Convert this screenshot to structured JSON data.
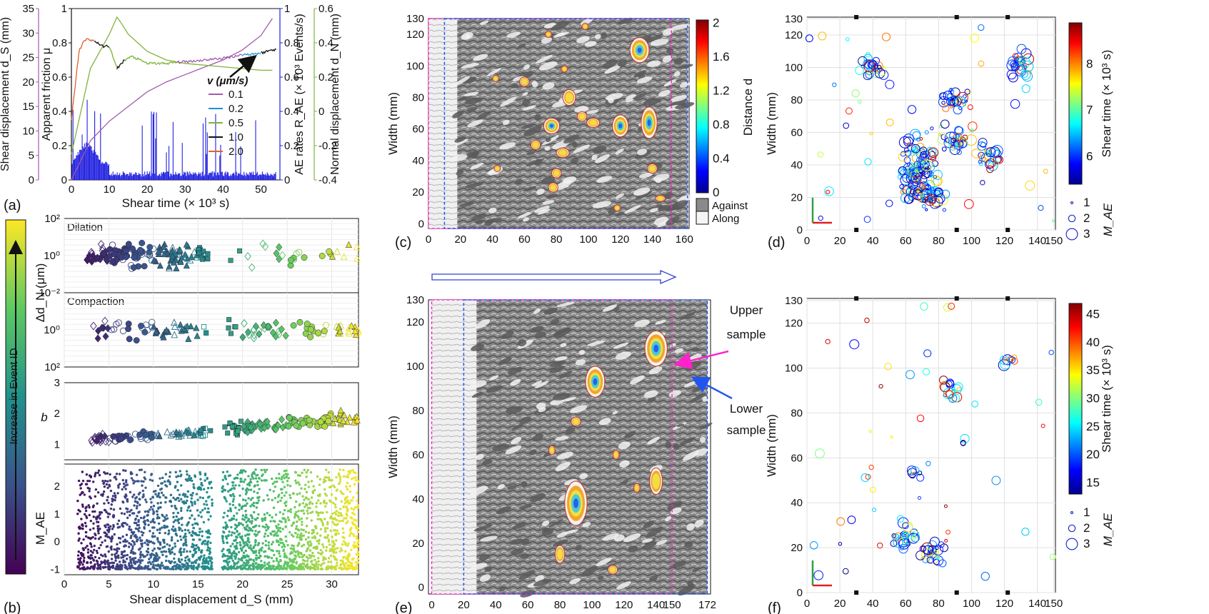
{
  "panel_letters": [
    "(a)",
    "(b)",
    "(c)",
    "(d)",
    "(e)",
    "(f)"
  ],
  "colors": {
    "ds": "#a35ab0",
    "ae": "#2020e0",
    "dn": "#7fb33a",
    "v01": "#a35ab0",
    "v02": "#1f8fd6",
    "v05": "#7fb33a",
    "v10": "#111111",
    "v20": "#e0602a",
    "upper": "#ff22cc",
    "lower": "#2255ee"
  },
  "chart_data": [
    {
      "id": "a",
      "type": "line",
      "xlabel": "Shear time (× 10³ s)",
      "xlim": [
        0,
        55
      ],
      "xticks": [
        "0",
        "10",
        "20",
        "30",
        "40",
        "50"
      ],
      "axes": [
        {
          "label": "Shear displacement d_S (mm)",
          "ylim": [
            0,
            35
          ],
          "ticks": [
            "0",
            "5",
            "10",
            "15",
            "20",
            "25",
            "30",
            "35"
          ]
        },
        {
          "label": "Apparent friction μ",
          "ylim": [
            0,
            1
          ],
          "ticks": [
            "0",
            "0.2",
            "0.4",
            "0.6",
            "0.8",
            "1"
          ]
        },
        {
          "label": "AE rates R_AE (× 10³ Events/s)",
          "ylim": [
            0,
            1
          ],
          "ticks": [
            "0",
            "0.2",
            "0.4",
            "0.6",
            "0.8",
            "1"
          ]
        },
        {
          "label": "Normal displacement d_N (mm)",
          "ylim": [
            -0.4,
            0.6
          ],
          "ticks": [
            "-0.4",
            "-0.2",
            "0",
            "0.2",
            "0.4",
            "0.6"
          ]
        }
      ],
      "legend_title": "v (μm/s)",
      "legend": [
        "0.1",
        "0.2",
        "0.5",
        "1.0",
        "2.0"
      ],
      "series": [
        {
          "name": "friction",
          "x": [
            0,
            2,
            3,
            4,
            5,
            6,
            7,
            8,
            10,
            12,
            14,
            16,
            20,
            25,
            30,
            35,
            40,
            45,
            50,
            53
          ],
          "values": [
            0.35,
            0.75,
            0.8,
            0.82,
            0.82,
            0.81,
            0.8,
            0.78,
            0.78,
            0.65,
            0.7,
            0.72,
            0.68,
            0.68,
            0.69,
            0.7,
            0.71,
            0.73,
            0.74,
            0.76
          ]
        },
        {
          "name": "d_S",
          "x": [
            0,
            5,
            10,
            15,
            20,
            25,
            30,
            35,
            40,
            45,
            50,
            53
          ],
          "values": [
            0,
            8,
            12,
            15,
            18,
            20,
            21.5,
            23,
            24.5,
            26.5,
            29.5,
            33
          ]
        },
        {
          "name": "d_N",
          "x": [
            0,
            5,
            10,
            12,
            13,
            15,
            20,
            25,
            30,
            40,
            50,
            53
          ],
          "values": [
            -0.25,
            0.25,
            0.45,
            0.55,
            0.52,
            0.45,
            0.35,
            0.3,
            0.28,
            0.26,
            0.24,
            0.24
          ]
        }
      ],
      "annotation": "v (μm/s)"
    },
    {
      "id": "b",
      "type": "scatter",
      "xlabel": "Shear displacement d_S (mm)",
      "xlim": [
        0,
        33
      ],
      "xticks": [
        "0",
        "5",
        "10",
        "15",
        "20",
        "25",
        "30"
      ],
      "colorbar_label": "Increase in Event ID",
      "subplots": [
        {
          "label": "Dilation",
          "ylabel": "Δd_N (μm)",
          "ticks": [
            "10²",
            "10⁰",
            "10⁻²"
          ]
        },
        {
          "label": "Compaction",
          "ticks": [
            "10⁰",
            "10²"
          ]
        },
        {
          "ylabel": "b",
          "ylim": [
            0.5,
            3
          ],
          "ticks": [
            "1",
            "2",
            "3"
          ]
        },
        {
          "ylabel": "M_AE",
          "ylim": [
            -1.2,
            2.8
          ],
          "ticks": [
            "-1",
            "0",
            "1",
            "2"
          ]
        }
      ]
    },
    {
      "id": "c",
      "type": "heatmap",
      "ylabel": "Width (mm)",
      "xticks": [
        "0",
        "20",
        "40",
        "60",
        "80",
        "100",
        "120",
        "140",
        "160"
      ],
      "xlim": [
        0,
        163
      ],
      "yticks": [
        "0",
        "20",
        "40",
        "60",
        "80",
        "100",
        "120",
        "130"
      ],
      "ylim": [
        -3,
        130
      ],
      "colorbar_label": "Distance d",
      "colorbar_ticks": [
        "0",
        "0.4",
        "0.8",
        "1.2",
        "1.6",
        "2"
      ],
      "legend": [
        "Against",
        "Along"
      ],
      "upper_sample_x": [
        0,
        152
      ],
      "lower_sample_x": [
        10,
        162
      ],
      "patches": [
        [
          132,
          110,
          6,
          8
        ],
        [
          138,
          64,
          5,
          10
        ],
        [
          120,
          62,
          5,
          7
        ],
        [
          77,
          62,
          5,
          5
        ],
        [
          88,
          80,
          4,
          5
        ],
        [
          96,
          68,
          3,
          3
        ],
        [
          84,
          45,
          4,
          3
        ],
        [
          80,
          32,
          3,
          3
        ],
        [
          67,
          50,
          3,
          3
        ],
        [
          60,
          90,
          3,
          3
        ],
        [
          103,
          64,
          4,
          3
        ],
        [
          140,
          35,
          3,
          3
        ],
        [
          145,
          16,
          3,
          2
        ],
        [
          78,
          23,
          3,
          3
        ],
        [
          118,
          10,
          2,
          2
        ],
        [
          75,
          120,
          2,
          2
        ],
        [
          98,
          125,
          2,
          2
        ],
        [
          85,
          98,
          2,
          2
        ],
        [
          43,
          35,
          2,
          2
        ],
        [
          42,
          92,
          2,
          2
        ]
      ]
    },
    {
      "id": "d",
      "type": "scatter",
      "xlim": [
        0,
        151
      ],
      "ylim": [
        0,
        131
      ],
      "xticks": [
        "0",
        "20",
        "40",
        "60",
        "80",
        "100",
        "120",
        "140",
        "150"
      ],
      "yticks": [
        "0",
        "20",
        "40",
        "60",
        "80",
        "100",
        "120",
        "130"
      ],
      "ylabel": "Width (mm)",
      "colorbar_label": "Shear time (× 10³ s)",
      "colorbar_range": [
        5.4,
        8.9
      ],
      "colorbar_ticks": [
        "6",
        "7",
        "8"
      ],
      "size_legend_title": "M_AE",
      "size_legend": [
        "1",
        "2",
        "3"
      ],
      "clusters": [
        [
          130,
          102,
          10,
          12
        ],
        [
          68,
          38,
          16,
          30
        ],
        [
          90,
          55,
          12,
          10
        ],
        [
          110,
          45,
          10,
          10
        ],
        [
          40,
          100,
          12,
          8
        ],
        [
          90,
          80,
          14,
          8
        ],
        [
          75,
          20,
          10,
          10
        ]
      ]
    },
    {
      "id": "e",
      "type": "heatmap",
      "ylabel": "Width (mm)",
      "xticks": [
        "0",
        "20",
        "40",
        "60",
        "80",
        "100",
        "120",
        "140",
        "150",
        "172"
      ],
      "xlim": [
        -2,
        174
      ],
      "yticks": [
        "0",
        "20",
        "40",
        "60",
        "80",
        "100",
        "120",
        "130"
      ],
      "ylim": [
        -3,
        130
      ],
      "upper_label": "Upper sample",
      "lower_label": "Lower sample",
      "upper_sample_x": [
        0,
        150
      ],
      "lower_sample_x": [
        20,
        172
      ],
      "patches": [
        [
          140,
          108,
          7,
          8
        ],
        [
          102,
          93,
          6,
          7
        ],
        [
          90,
          38,
          7,
          10
        ],
        [
          140,
          48,
          4,
          6
        ],
        [
          80,
          15,
          3,
          4
        ],
        [
          113,
          8,
          3,
          2
        ],
        [
          90,
          75,
          3,
          2
        ],
        [
          128,
          45,
          2,
          2
        ],
        [
          115,
          60,
          2,
          2
        ],
        [
          75,
          62,
          2,
          2
        ]
      ]
    },
    {
      "id": "f",
      "type": "scatter",
      "xlim": [
        0,
        151
      ],
      "ylim": [
        0,
        131
      ],
      "xticks": [
        "0",
        "20",
        "40",
        "60",
        "80",
        "100",
        "120",
        "140",
        "150"
      ],
      "yticks": [
        "0",
        "20",
        "40",
        "60",
        "80",
        "100",
        "120",
        "130"
      ],
      "ylabel": "Width (mm)",
      "colorbar_label": "Shear time (× 10³ s)",
      "colorbar_range": [
        13,
        47
      ],
      "colorbar_ticks": [
        "15",
        "20",
        "25",
        "30",
        "35",
        "40",
        "45"
      ],
      "size_legend_title": "M_AE",
      "size_legend": [
        "1",
        "2",
        "3"
      ],
      "clusters": [
        [
          88,
          90,
          8,
          8
        ],
        [
          123,
          102,
          6,
          6
        ],
        [
          65,
          53,
          7,
          4
        ],
        [
          75,
          18,
          10,
          10
        ],
        [
          95,
          67,
          3,
          3
        ],
        [
          60,
          25,
          10,
          10
        ]
      ]
    }
  ]
}
